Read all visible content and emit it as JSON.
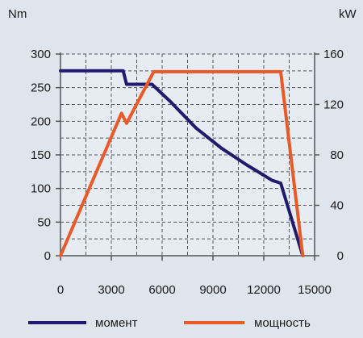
{
  "chart_data": {
    "type": "line",
    "left_axis_unit": "Nm",
    "right_axis_unit": "kW",
    "x_ticks": [
      "0",
      "3000",
      "6000",
      "9000",
      "12000",
      "15000"
    ],
    "x_tick_values": [
      0,
      3000,
      6000,
      9000,
      12000,
      15000
    ],
    "y_left_ticks": [
      "0",
      "50",
      "100",
      "150",
      "200",
      "250",
      "300"
    ],
    "y_left_tick_values": [
      0,
      50,
      100,
      150,
      200,
      250,
      300
    ],
    "y_right_ticks": [
      "0",
      "40",
      "80",
      "120",
      "160"
    ],
    "y_right_tick_values": [
      0,
      40,
      80,
      120,
      160
    ],
    "xlim": [
      0,
      15000
    ],
    "ylim_left": [
      0,
      300
    ],
    "ylim_right": [
      0,
      160
    ],
    "grid": true,
    "legend_position": "bottom",
    "series": [
      {
        "name": "момент",
        "axis": "left",
        "color": "#1f1a6e",
        "points": [
          [
            0,
            275
          ],
          [
            3700,
            275
          ],
          [
            3900,
            255
          ],
          [
            5400,
            255
          ],
          [
            6500,
            229
          ],
          [
            8000,
            190
          ],
          [
            9500,
            160
          ],
          [
            11000,
            135
          ],
          [
            12500,
            112
          ],
          [
            13000,
            108
          ],
          [
            14300,
            0
          ]
        ]
      },
      {
        "name": "мощность",
        "axis": "right",
        "color": "#e85a28",
        "points": [
          [
            0,
            0
          ],
          [
            3600,
            113
          ],
          [
            3900,
            105
          ],
          [
            5500,
            146
          ],
          [
            13000,
            146
          ],
          [
            14300,
            0
          ]
        ]
      }
    ]
  }
}
